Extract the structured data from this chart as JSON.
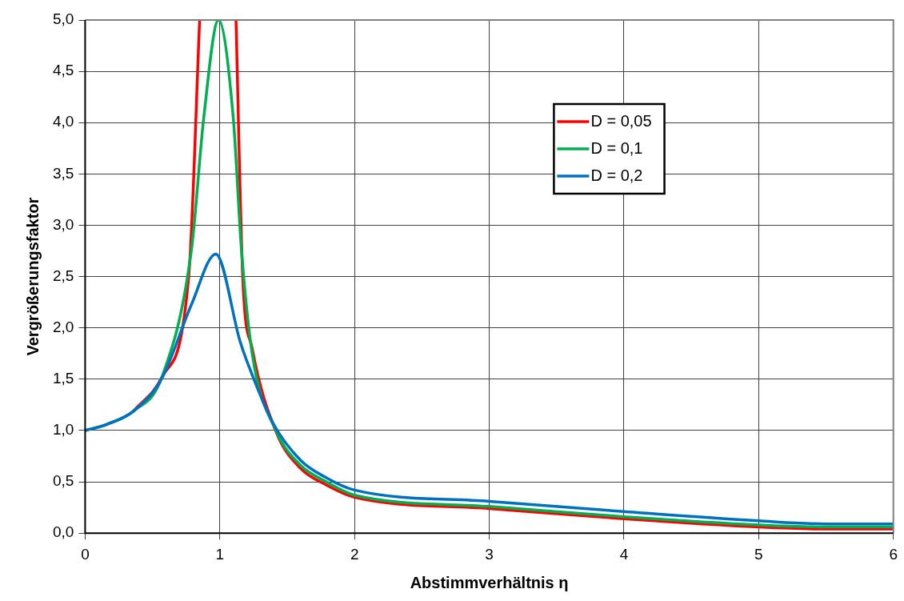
{
  "chart_data": {
    "type": "line",
    "xlabel": "Abstimmverhältnis η",
    "ylabel": "Vergrößerungsfaktor",
    "xlim": [
      0,
      6
    ],
    "xticks": [
      0,
      1,
      2,
      3,
      4,
      5,
      6
    ],
    "ylim": [
      0,
      5
    ],
    "yticks": [
      {
        "value": 0,
        "label": "0,0"
      },
      {
        "value": 0.5,
        "label": "0,5"
      },
      {
        "value": 1,
        "label": "1,0"
      },
      {
        "value": 1.5,
        "label": "1,5"
      },
      {
        "value": 2,
        "label": "2,0"
      },
      {
        "value": 2.5,
        "label": "2,5"
      },
      {
        "value": 3,
        "label": "3,0"
      },
      {
        "value": 3.5,
        "label": "3,5"
      },
      {
        "value": 4,
        "label": "4,0"
      },
      {
        "value": 4.5,
        "label": "4,5"
      },
      {
        "value": 5,
        "label": "5,0"
      }
    ],
    "grid": true,
    "legend": "top right",
    "marker": "none",
    "line_style": "solid",
    "series": [
      {
        "name": "D = 0,05",
        "color": "#ff0000",
        "x": [
          0.36,
          0.57,
          0.77,
          0.85,
          1.0,
          1.12,
          1.17,
          1.24,
          1.42,
          1.6,
          1.79,
          2,
          3,
          4,
          5,
          5.5,
          6
        ],
        "values": [
          1.19,
          1.52,
          2.52,
          5,
          null,
          5,
          2.5,
          1.8,
          0.98,
          0.63,
          0.47,
          0.35,
          0.24,
          0.14,
          0.06,
          0.04,
          0.04
        ]
      },
      {
        "name": "D = 0,1",
        "color": "#00b050",
        "x": [
          0,
          0.16,
          0.36,
          0.57,
          0.79,
          0.88,
          0.99,
          1.1,
          1.16,
          1.24,
          1.42,
          1.6,
          1.79,
          2,
          3,
          4,
          5,
          5.5,
          6
        ],
        "values": [
          1,
          1.06,
          1.19,
          1.52,
          2.77,
          4.04,
          5,
          4.04,
          2.77,
          1.75,
          0.99,
          0.66,
          0.5,
          0.37,
          0.26,
          0.16,
          0.08,
          0.06,
          0.06
        ]
      },
      {
        "name": "D = 0,2",
        "color": "#0070c0",
        "x": [
          0,
          0.16,
          0.36,
          0.57,
          0.79,
          0.97,
          1.15,
          1.2,
          1.4,
          1.6,
          1.79,
          2,
          3,
          4,
          5,
          5.5,
          6
        ],
        "values": [
          1,
          1.06,
          1.19,
          1.51,
          2.23,
          2.72,
          1.87,
          1.68,
          1.06,
          0.71,
          0.54,
          0.42,
          0.31,
          0.21,
          0.12,
          0.09,
          0.09
        ]
      }
    ]
  }
}
